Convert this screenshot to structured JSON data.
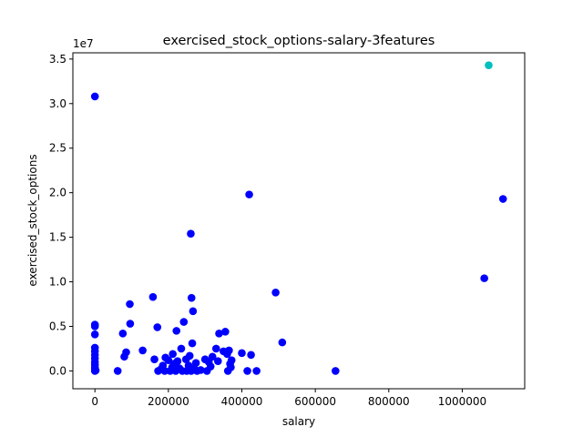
{
  "chart_data": {
    "type": "scatter",
    "title": "exercised_stock_options-salary-3features",
    "xlabel": "salary",
    "ylabel": "exercised_stock_options",
    "y_offset_text": "1e7",
    "xlim": [
      -60000,
      1170000
    ],
    "ylim": [
      -2000000,
      35700000
    ],
    "x_ticks": [
      0,
      200000,
      400000,
      600000,
      800000,
      1000000
    ],
    "x_tick_labels": [
      "0",
      "200000",
      "400000",
      "600000",
      "800000",
      "1000000"
    ],
    "y_ticks": [
      0,
      5000000,
      10000000,
      15000000,
      20000000,
      25000000,
      30000000,
      35000000
    ],
    "y_tick_labels": [
      "0.0",
      "0.5",
      "1.0",
      "1.5",
      "2.0",
      "2.5",
      "3.0",
      "3.5"
    ],
    "grid": false,
    "legend": "none",
    "colors": {
      "default": "#0000ff",
      "highlight": "#00bfbf"
    },
    "series": [
      {
        "color": "#0000ff",
        "points": [
          [
            0,
            30800000
          ],
          [
            0,
            5200000
          ],
          [
            0,
            5000000
          ],
          [
            0,
            4100000
          ],
          [
            0,
            2600000
          ],
          [
            0,
            2200000
          ],
          [
            0,
            1800000
          ],
          [
            0,
            1400000
          ],
          [
            0,
            1000000
          ],
          [
            0,
            700000
          ],
          [
            0,
            400000
          ],
          [
            0,
            200000
          ],
          [
            0,
            0
          ],
          [
            2000,
            50000
          ],
          [
            62000,
            0
          ],
          [
            76000,
            4200000
          ],
          [
            80000,
            1600000
          ],
          [
            85000,
            2100000
          ],
          [
            95000,
            7500000
          ],
          [
            96000,
            5300000
          ],
          [
            130000,
            2300000
          ],
          [
            158000,
            8300000
          ],
          [
            162000,
            1300000
          ],
          [
            170000,
            4900000
          ],
          [
            172000,
            0
          ],
          [
            180000,
            200000
          ],
          [
            185000,
            600000
          ],
          [
            190000,
            0
          ],
          [
            192000,
            1500000
          ],
          [
            200000,
            1200000
          ],
          [
            205000,
            0
          ],
          [
            210000,
            400000
          ],
          [
            212000,
            1900000
          ],
          [
            215000,
            800000
          ],
          [
            220000,
            0
          ],
          [
            222000,
            4500000
          ],
          [
            225000,
            1100000
          ],
          [
            230000,
            300000
          ],
          [
            235000,
            2500000
          ],
          [
            238000,
            0
          ],
          [
            242000,
            5500000
          ],
          [
            248000,
            1300000
          ],
          [
            250000,
            0
          ],
          [
            255000,
            600000
          ],
          [
            258000,
            1700000
          ],
          [
            261000,
            15400000
          ],
          [
            262000,
            0
          ],
          [
            263000,
            8200000
          ],
          [
            265000,
            3100000
          ],
          [
            267000,
            6700000
          ],
          [
            270000,
            300000
          ],
          [
            275000,
            900000
          ],
          [
            278000,
            0
          ],
          [
            288000,
            100000
          ],
          [
            300000,
            1300000
          ],
          [
            305000,
            0
          ],
          [
            310000,
            1000000
          ],
          [
            315000,
            500000
          ],
          [
            320000,
            1600000
          ],
          [
            330000,
            2500000
          ],
          [
            335000,
            1100000
          ],
          [
            338000,
            4200000
          ],
          [
            350000,
            2200000
          ],
          [
            355000,
            4400000
          ],
          [
            360000,
            1900000
          ],
          [
            362000,
            0
          ],
          [
            365000,
            2300000
          ],
          [
            368000,
            800000
          ],
          [
            370000,
            400000
          ],
          [
            372000,
            1200000
          ],
          [
            400000,
            2000000
          ],
          [
            415000,
            0
          ],
          [
            420000,
            19800000
          ],
          [
            425000,
            1800000
          ],
          [
            440000,
            0
          ],
          [
            492000,
            8800000
          ],
          [
            510000,
            3200000
          ],
          [
            655000,
            0
          ],
          [
            1060000,
            10400000
          ],
          [
            1111000,
            19300000
          ]
        ]
      },
      {
        "color": "#00bfbf",
        "points": [
          [
            1072000,
            34300000
          ]
        ]
      }
    ]
  }
}
